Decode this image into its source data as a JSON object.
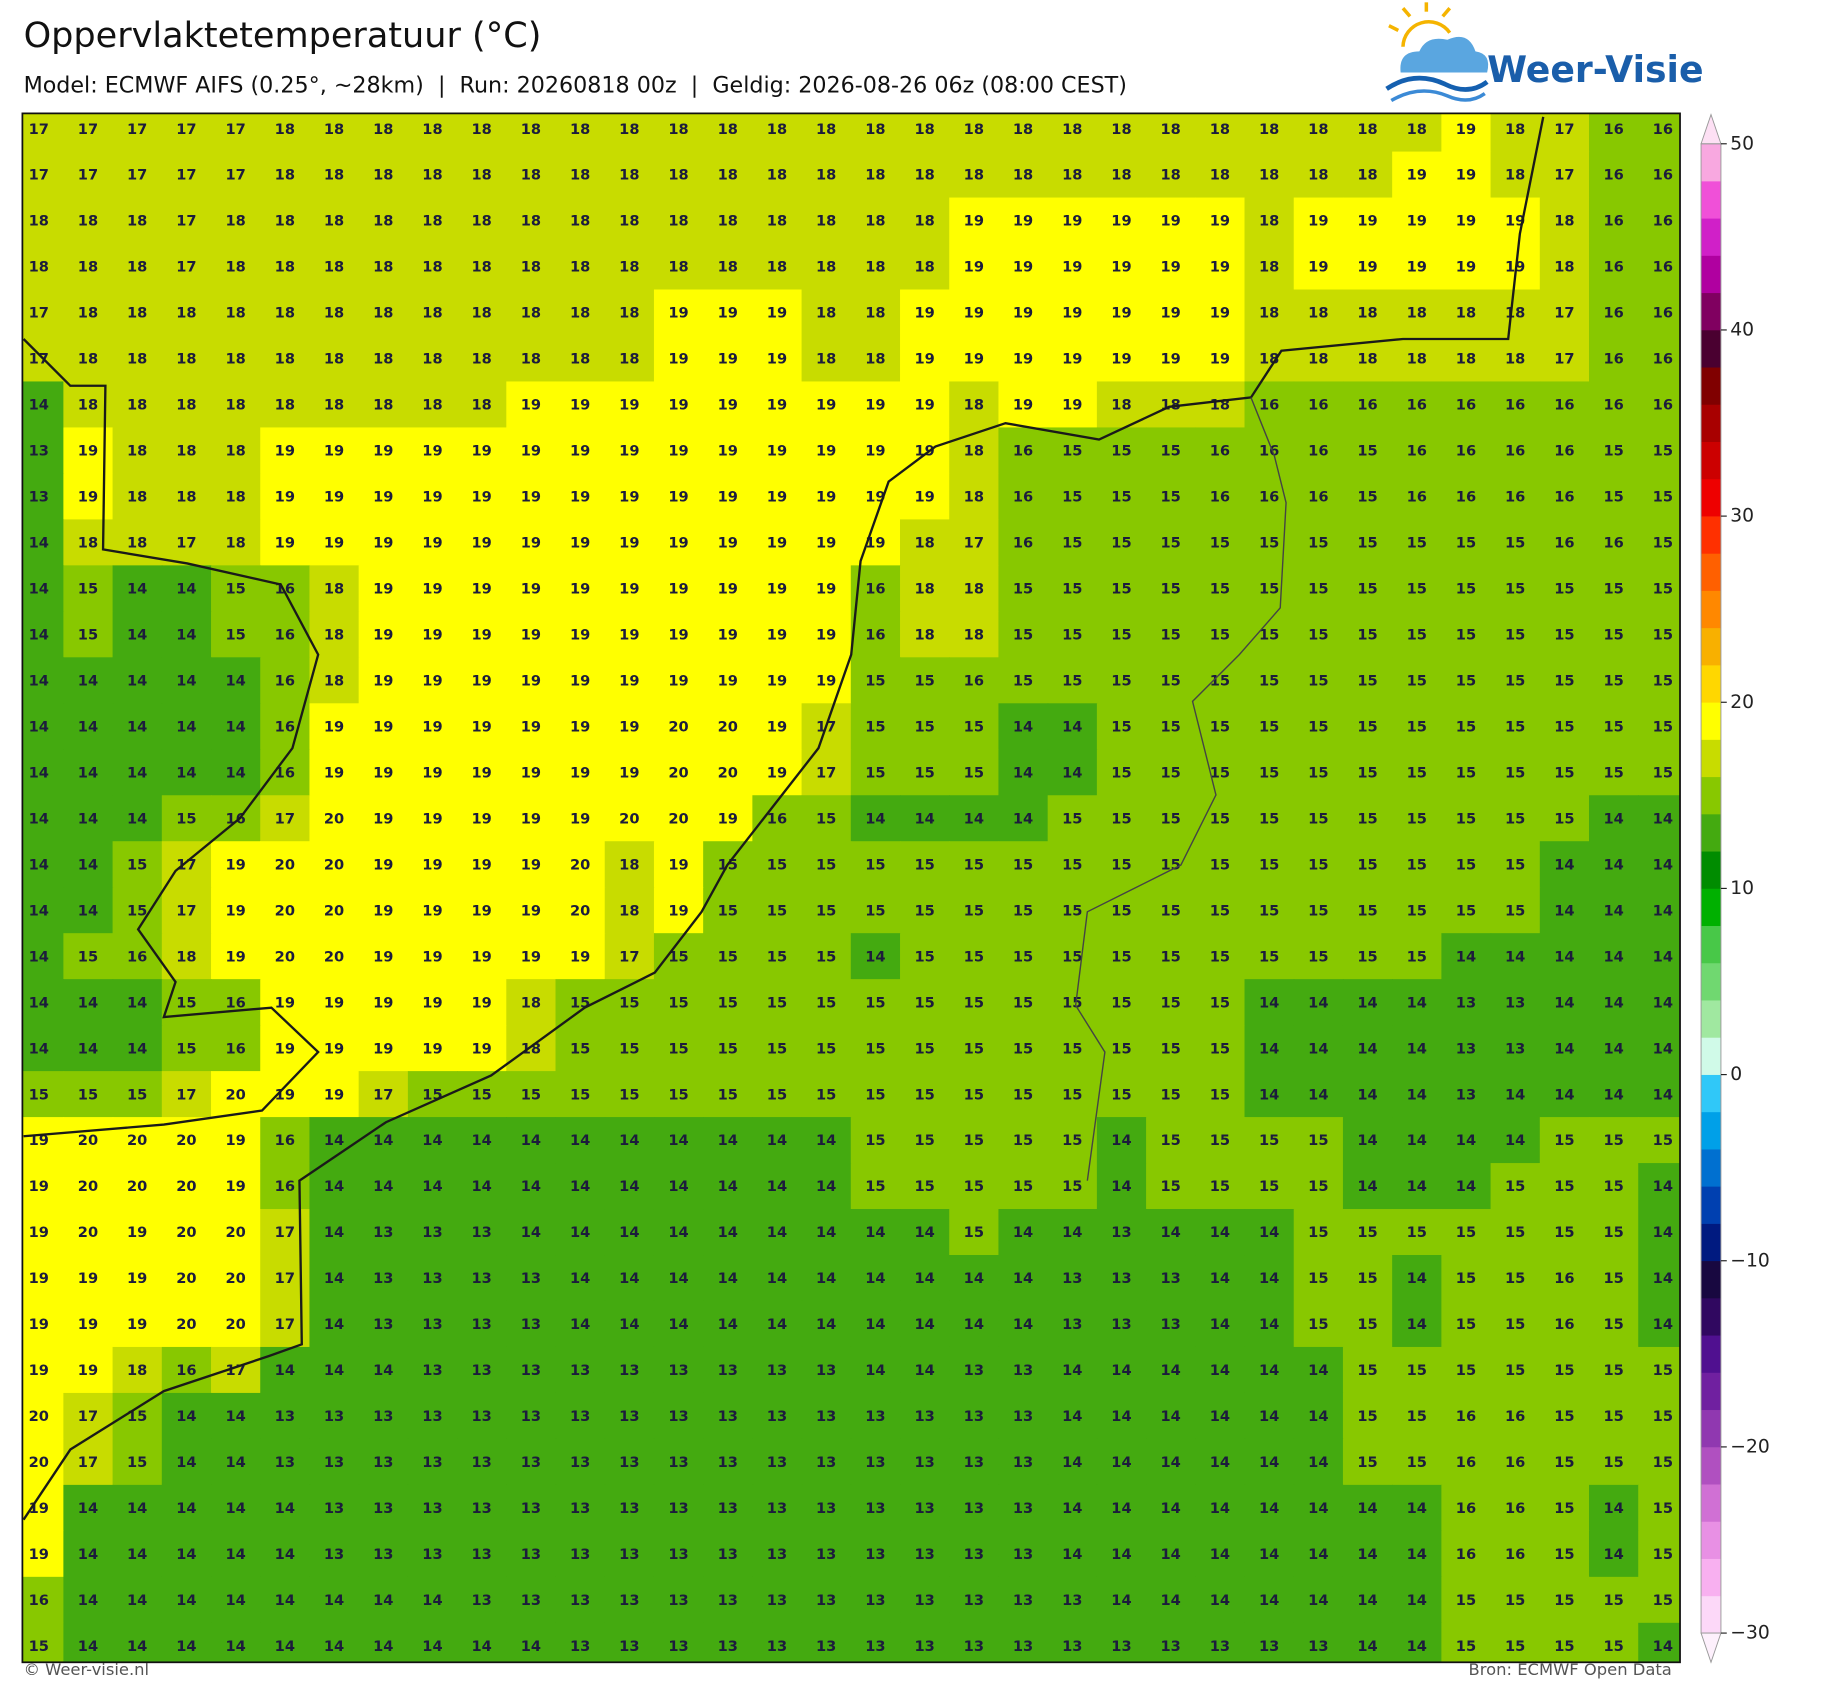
{
  "header": {
    "title": "Oppervlaktetemperatuur (°C)",
    "subtitle": "Model: ECMWF AIFS (0.25°, ~28km)  |  Run: 20260818 00z  |  Geldig: 2026-08-26 06z (08:00 CEST)",
    "logo": "Weer-Visie"
  },
  "chart_data": {
    "type": "heatmap",
    "grid": [
      [
        17,
        17,
        17,
        17,
        17,
        18,
        18,
        18,
        18,
        18,
        18,
        18,
        18,
        18,
        18,
        18,
        18,
        18,
        18,
        18,
        18,
        18,
        18,
        18,
        18,
        18,
        18,
        18,
        18,
        19,
        18,
        17,
        16,
        16
      ],
      [
        17,
        17,
        17,
        17,
        17,
        18,
        18,
        18,
        18,
        18,
        18,
        18,
        18,
        18,
        18,
        18,
        18,
        18,
        18,
        18,
        18,
        18,
        18,
        18,
        18,
        18,
        18,
        18,
        19,
        19,
        18,
        17,
        16,
        16
      ],
      [
        18,
        18,
        18,
        17,
        18,
        18,
        18,
        18,
        18,
        18,
        18,
        18,
        18,
        18,
        18,
        18,
        18,
        18,
        18,
        19,
        19,
        19,
        19,
        19,
        19,
        18,
        19,
        19,
        19,
        19,
        19,
        18,
        16,
        16
      ],
      [
        18,
        18,
        18,
        17,
        18,
        18,
        18,
        18,
        18,
        18,
        18,
        18,
        18,
        18,
        18,
        18,
        18,
        18,
        18,
        19,
        19,
        19,
        19,
        19,
        19,
        18,
        19,
        19,
        19,
        19,
        19,
        18,
        16,
        16
      ],
      [
        17,
        18,
        18,
        18,
        18,
        18,
        18,
        18,
        18,
        18,
        18,
        18,
        18,
        19,
        19,
        19,
        18,
        18,
        19,
        19,
        19,
        19,
        19,
        19,
        19,
        18,
        18,
        18,
        18,
        18,
        18,
        17,
        16,
        16
      ],
      [
        17,
        18,
        18,
        18,
        18,
        18,
        18,
        18,
        18,
        18,
        18,
        18,
        18,
        19,
        19,
        19,
        18,
        18,
        19,
        19,
        19,
        19,
        19,
        19,
        19,
        18,
        18,
        18,
        18,
        18,
        18,
        17,
        16,
        16
      ],
      [
        14,
        18,
        18,
        18,
        18,
        18,
        18,
        18,
        18,
        18,
        19,
        19,
        19,
        19,
        19,
        19,
        19,
        19,
        19,
        18,
        19,
        19,
        18,
        18,
        18,
        16,
        16,
        16,
        16,
        16,
        16,
        16,
        16,
        16
      ],
      [
        13,
        19,
        18,
        18,
        18,
        19,
        19,
        19,
        19,
        19,
        19,
        19,
        19,
        19,
        19,
        19,
        19,
        19,
        19,
        18,
        16,
        15,
        15,
        15,
        16,
        16,
        16,
        15,
        16,
        16,
        16,
        16,
        15,
        15
      ],
      [
        13,
        19,
        18,
        18,
        18,
        19,
        19,
        19,
        19,
        19,
        19,
        19,
        19,
        19,
        19,
        19,
        19,
        19,
        19,
        18,
        16,
        15,
        15,
        15,
        16,
        16,
        16,
        15,
        16,
        16,
        16,
        16,
        15,
        15
      ],
      [
        14,
        18,
        18,
        17,
        18,
        19,
        19,
        19,
        19,
        19,
        19,
        19,
        19,
        19,
        19,
        19,
        19,
        19,
        18,
        17,
        16,
        15,
        15,
        15,
        15,
        15,
        15,
        15,
        15,
        15,
        15,
        16,
        16,
        15
      ],
      [
        14,
        15,
        14,
        14,
        15,
        16,
        18,
        19,
        19,
        19,
        19,
        19,
        19,
        19,
        19,
        19,
        19,
        16,
        18,
        18,
        15,
        15,
        15,
        15,
        15,
        15,
        15,
        15,
        15,
        15,
        15,
        15,
        15,
        15
      ],
      [
        14,
        15,
        14,
        14,
        15,
        16,
        18,
        19,
        19,
        19,
        19,
        19,
        19,
        19,
        19,
        19,
        19,
        16,
        18,
        18,
        15,
        15,
        15,
        15,
        15,
        15,
        15,
        15,
        15,
        15,
        15,
        15,
        15,
        15
      ],
      [
        14,
        14,
        14,
        14,
        14,
        16,
        18,
        19,
        19,
        19,
        19,
        19,
        19,
        19,
        19,
        19,
        19,
        15,
        15,
        16,
        15,
        15,
        15,
        15,
        15,
        15,
        15,
        15,
        15,
        15,
        15,
        15,
        15,
        15
      ],
      [
        14,
        14,
        14,
        14,
        14,
        16,
        19,
        19,
        19,
        19,
        19,
        19,
        19,
        20,
        20,
        19,
        17,
        15,
        15,
        15,
        14,
        14,
        15,
        15,
        15,
        15,
        15,
        15,
        15,
        15,
        15,
        15,
        15,
        15
      ],
      [
        14,
        14,
        14,
        14,
        14,
        16,
        19,
        19,
        19,
        19,
        19,
        19,
        19,
        20,
        20,
        19,
        17,
        15,
        15,
        15,
        14,
        14,
        15,
        15,
        15,
        15,
        15,
        15,
        15,
        15,
        15,
        15,
        15,
        15
      ],
      [
        14,
        14,
        14,
        15,
        16,
        17,
        20,
        19,
        19,
        19,
        19,
        19,
        20,
        20,
        19,
        16,
        15,
        14,
        14,
        14,
        14,
        15,
        15,
        15,
        15,
        15,
        15,
        15,
        15,
        15,
        15,
        15,
        14,
        14
      ],
      [
        14,
        14,
        15,
        17,
        19,
        20,
        20,
        19,
        19,
        19,
        19,
        20,
        18,
        19,
        15,
        15,
        15,
        15,
        15,
        15,
        15,
        15,
        15,
        15,
        15,
        15,
        15,
        15,
        15,
        15,
        15,
        14,
        14,
        14
      ],
      [
        14,
        14,
        15,
        17,
        19,
        20,
        20,
        19,
        19,
        19,
        19,
        20,
        18,
        19,
        15,
        15,
        15,
        15,
        15,
        15,
        15,
        15,
        15,
        15,
        15,
        15,
        15,
        15,
        15,
        15,
        15,
        14,
        14,
        14
      ],
      [
        14,
        15,
        16,
        18,
        19,
        20,
        20,
        19,
        19,
        19,
        19,
        19,
        17,
        15,
        15,
        15,
        15,
        14,
        15,
        15,
        15,
        15,
        15,
        15,
        15,
        15,
        15,
        15,
        15,
        14,
        14,
        14,
        14,
        14
      ],
      [
        14,
        14,
        14,
        15,
        16,
        19,
        19,
        19,
        19,
        19,
        18,
        15,
        15,
        15,
        15,
        15,
        15,
        15,
        15,
        15,
        15,
        15,
        15,
        15,
        15,
        14,
        14,
        14,
        14,
        13,
        13,
        14,
        14,
        14
      ],
      [
        14,
        14,
        14,
        15,
        16,
        19,
        19,
        19,
        19,
        19,
        18,
        15,
        15,
        15,
        15,
        15,
        15,
        15,
        15,
        15,
        15,
        15,
        15,
        15,
        15,
        14,
        14,
        14,
        14,
        13,
        13,
        14,
        14,
        14
      ],
      [
        15,
        15,
        15,
        17,
        20,
        19,
        19,
        17,
        15,
        15,
        15,
        15,
        15,
        15,
        15,
        15,
        15,
        15,
        15,
        15,
        15,
        15,
        15,
        15,
        15,
        14,
        14,
        14,
        14,
        13,
        14,
        14,
        14,
        14
      ],
      [
        19,
        20,
        20,
        20,
        19,
        16,
        14,
        14,
        14,
        14,
        14,
        14,
        14,
        14,
        14,
        14,
        14,
        15,
        15,
        15,
        15,
        15,
        14,
        15,
        15,
        15,
        15,
        14,
        14,
        14,
        14,
        15,
        15,
        15
      ],
      [
        19,
        20,
        20,
        20,
        19,
        16,
        14,
        14,
        14,
        14,
        14,
        14,
        14,
        14,
        14,
        14,
        14,
        15,
        15,
        15,
        15,
        15,
        14,
        15,
        15,
        15,
        15,
        14,
        14,
        14,
        15,
        15,
        15,
        14
      ],
      [
        19,
        20,
        19,
        20,
        20,
        17,
        14,
        13,
        13,
        13,
        14,
        14,
        14,
        14,
        14,
        14,
        14,
        14,
        14,
        15,
        14,
        14,
        13,
        14,
        14,
        14,
        15,
        15,
        15,
        15,
        15,
        15,
        15,
        14
      ],
      [
        19,
        19,
        19,
        20,
        20,
        17,
        14,
        13,
        13,
        13,
        13,
        14,
        14,
        14,
        14,
        14,
        14,
        14,
        14,
        14,
        14,
        13,
        13,
        13,
        14,
        14,
        15,
        15,
        14,
        15,
        15,
        16,
        15,
        14
      ],
      [
        19,
        19,
        19,
        20,
        20,
        17,
        14,
        13,
        13,
        13,
        13,
        14,
        14,
        14,
        14,
        14,
        14,
        14,
        14,
        14,
        14,
        13,
        13,
        13,
        14,
        14,
        15,
        15,
        14,
        15,
        15,
        16,
        15,
        14
      ],
      [
        19,
        19,
        18,
        16,
        17,
        14,
        14,
        14,
        13,
        13,
        13,
        13,
        13,
        13,
        13,
        13,
        13,
        14,
        14,
        13,
        13,
        14,
        14,
        14,
        14,
        14,
        14,
        15,
        15,
        15,
        15,
        15,
        15,
        15
      ],
      [
        20,
        17,
        15,
        14,
        14,
        13,
        13,
        13,
        13,
        13,
        13,
        13,
        13,
        13,
        13,
        13,
        13,
        13,
        13,
        13,
        13,
        14,
        14,
        14,
        14,
        14,
        14,
        15,
        15,
        16,
        16,
        15,
        15,
        15
      ],
      [
        20,
        17,
        15,
        14,
        14,
        13,
        13,
        13,
        13,
        13,
        13,
        13,
        13,
        13,
        13,
        13,
        13,
        13,
        13,
        13,
        13,
        14,
        14,
        14,
        14,
        14,
        14,
        15,
        15,
        16,
        16,
        15,
        15,
        15
      ],
      [
        19,
        14,
        14,
        14,
        14,
        14,
        13,
        13,
        13,
        13,
        13,
        13,
        13,
        13,
        13,
        13,
        13,
        13,
        13,
        13,
        13,
        14,
        14,
        14,
        14,
        14,
        14,
        14,
        14,
        16,
        16,
        15,
        14,
        15
      ],
      [
        19,
        14,
        14,
        14,
        14,
        14,
        13,
        13,
        13,
        13,
        13,
        13,
        13,
        13,
        13,
        13,
        13,
        13,
        13,
        13,
        13,
        14,
        14,
        14,
        14,
        14,
        14,
        14,
        14,
        16,
        16,
        15,
        14,
        15
      ],
      [
        16,
        14,
        14,
        14,
        14,
        14,
        14,
        14,
        14,
        13,
        13,
        13,
        13,
        13,
        13,
        13,
        13,
        13,
        13,
        13,
        13,
        13,
        14,
        14,
        14,
        14,
        14,
        14,
        14,
        15,
        15,
        15,
        15,
        15
      ],
      [
        15,
        14,
        14,
        14,
        14,
        14,
        14,
        14,
        14,
        14,
        14,
        13,
        13,
        13,
        13,
        13,
        13,
        13,
        13,
        13,
        13,
        13,
        13,
        13,
        13,
        13,
        13,
        14,
        14,
        15,
        15,
        15,
        15,
        14
      ]
    ],
    "colorbar": {
      "lim": [
        -30,
        50
      ],
      "ticks": [
        50,
        40,
        30,
        20,
        10,
        0,
        {
          "value": -10,
          "label": "−10"
        },
        {
          "value": -20,
          "label": "−20"
        },
        {
          "value": -30,
          "label": "−30"
        }
      ],
      "colors": [
        "#fcd8f8",
        "#f8b0f0",
        "#e890e4",
        "#d070d4",
        "#b050c0",
        "#9038b0",
        "#7020a0",
        "#501090",
        "#300860",
        "#180840",
        "#001a80",
        "#0040b0",
        "#0070d0",
        "#00a0e8",
        "#30c8f8",
        "#d0fae8",
        "#a0e8a0",
        "#70d870",
        "#48c848",
        "#00b000",
        "#008c00",
        "#44aa10",
        "#88c800",
        "#c8dc00",
        "#ffff00",
        "#ffd700",
        "#f8b000",
        "#ff8800",
        "#ff6000",
        "#ff3000",
        "#ee0000",
        "#cc0000",
        "#a80000",
        "#800000",
        "#4a0030",
        "#800060",
        "#b000a0",
        "#d020c8",
        "#f050d8",
        "#f8a8e0"
      ],
      "under_color": "#fdf0fc",
      "over_color": "#fde0f4"
    }
  },
  "footer": {
    "left": "© Weer-visie.nl",
    "right": "Bron: ECMWF Open Data"
  }
}
